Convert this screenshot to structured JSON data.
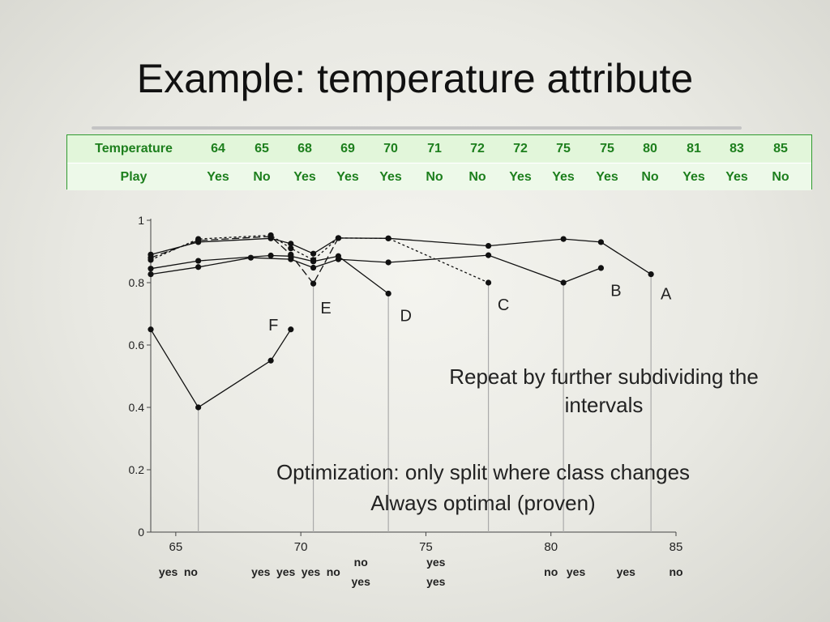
{
  "title": "Example: temperature attribute",
  "table": {
    "row_headers": [
      "Temperature",
      "Play"
    ],
    "temperature": [
      "64",
      "65",
      "68",
      "69",
      "70",
      "71",
      "72",
      "72",
      "75",
      "75",
      "80",
      "81",
      "83",
      "85"
    ],
    "play": [
      "Yes",
      "No",
      "Yes",
      "Yes",
      "Yes",
      "No",
      "No",
      "Yes",
      "Yes",
      "Yes",
      "No",
      "Yes",
      "Yes",
      "No"
    ]
  },
  "notes": {
    "repeat": "Repeat by further subdividing the intervals",
    "optimization": "Optimization: only split where class changes",
    "optimal": "Always optimal (proven)"
  },
  "chart_data": {
    "type": "line",
    "xlim": [
      64,
      85
    ],
    "ylim": [
      0,
      1
    ],
    "x_ticks": [
      "65",
      "70",
      "75",
      "80",
      "85"
    ],
    "y_ticks": [
      "0",
      "0.2",
      "0.4",
      "0.6",
      "0.8",
      "1"
    ],
    "series": [
      {
        "name": "A",
        "label_at": [
          84.6,
          0.765
        ],
        "points": [
          [
            64,
            0.89
          ],
          [
            65.9,
            0.93
          ],
          [
            68.8,
            0.942
          ],
          [
            69.6,
            0.925
          ],
          [
            70.5,
            0.893
          ],
          [
            71.5,
            0.943
          ],
          [
            73.5,
            0.942
          ],
          [
            77.5,
            0.918
          ],
          [
            80.5,
            0.94
          ],
          [
            82,
            0.93
          ],
          [
            84,
            0.827
          ]
        ],
        "dash": ""
      },
      {
        "name": "B",
        "label_at": [
          82.6,
          0.775
        ],
        "points": [
          [
            64,
            0.827
          ],
          [
            65.9,
            0.85
          ],
          [
            68,
            0.88
          ],
          [
            69.6,
            0.875
          ],
          [
            70.5,
            0.848
          ],
          [
            71.5,
            0.875
          ],
          [
            73.5,
            0.865
          ],
          [
            77.5,
            0.888
          ],
          [
            80.5,
            0.8
          ],
          [
            82,
            0.847
          ]
        ],
        "dash": ""
      },
      {
        "name": "C",
        "label_at": [
          78.1,
          0.73
        ],
        "points": [
          [
            64,
            0.873
          ],
          [
            65.9,
            0.94
          ],
          [
            68.8,
            0.952
          ],
          [
            69.6,
            0.91
          ],
          [
            70.5,
            0.873
          ],
          [
            71.5,
            0.943
          ],
          [
            73.5,
            0.942
          ],
          [
            77.5,
            0.8
          ]
        ],
        "dash": "3,3"
      },
      {
        "name": "D",
        "label_at": [
          74.2,
          0.695
        ],
        "points": [
          [
            64,
            0.845
          ],
          [
            65.9,
            0.87
          ],
          [
            68.8,
            0.887
          ],
          [
            69.6,
            0.885
          ],
          [
            70.5,
            0.868
          ],
          [
            71.5,
            0.885
          ],
          [
            73.5,
            0.765
          ]
        ],
        "dash": ""
      },
      {
        "name": "E",
        "label_at": [
          71.0,
          0.72
        ],
        "points": [
          [
            64,
            0.88
          ],
          [
            65.9,
            0.935
          ],
          [
            68.8,
            0.948
          ],
          [
            69.6,
            0.89
          ],
          [
            70.5,
            0.797
          ],
          [
            71.5,
            0.943
          ]
        ],
        "dash": "9,4"
      },
      {
        "name": "F",
        "label_at": [
          68.9,
          0.665
        ],
        "points": [
          [
            64,
            0.65
          ],
          [
            65.9,
            0.4
          ],
          [
            68.8,
            0.55
          ],
          [
            69.6,
            0.65
          ]
        ],
        "dash": ""
      }
    ],
    "splits": [
      65.9,
      70.5,
      73.5,
      77.5,
      80.5,
      84.0
    ],
    "class_labels": [
      {
        "x": 64.7,
        "row": 1,
        "text": "yes"
      },
      {
        "x": 65.6,
        "row": 1,
        "text": "no"
      },
      {
        "x": 68.4,
        "row": 1,
        "text": "yes"
      },
      {
        "x": 69.4,
        "row": 1,
        "text": "yes"
      },
      {
        "x": 70.4,
        "row": 1,
        "text": "yes"
      },
      {
        "x": 71.3,
        "row": 1,
        "text": "no"
      },
      {
        "x": 72.4,
        "row": 0,
        "text": "no"
      },
      {
        "x": 72.4,
        "row": 2,
        "text": "yes"
      },
      {
        "x": 75.4,
        "row": 0,
        "text": "yes"
      },
      {
        "x": 75.4,
        "row": 2,
        "text": "yes"
      },
      {
        "x": 80.0,
        "row": 1,
        "text": "no"
      },
      {
        "x": 81.0,
        "row": 1,
        "text": "yes"
      },
      {
        "x": 83.0,
        "row": 1,
        "text": "yes"
      },
      {
        "x": 85.0,
        "row": 1,
        "text": "no"
      }
    ]
  }
}
